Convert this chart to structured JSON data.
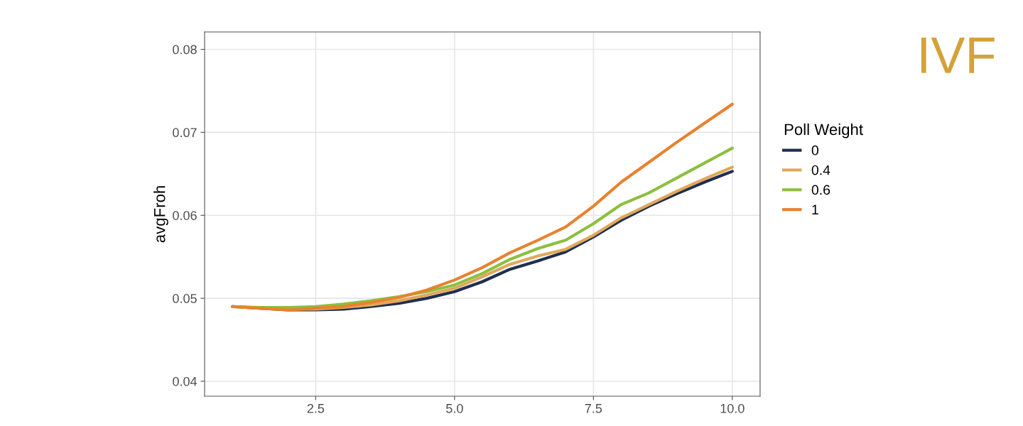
{
  "chart_data": {
    "type": "line",
    "ylabel": "avgFroh",
    "legend_title": "Poll Weight",
    "legend": "right",
    "grid": true,
    "line_style": "solid",
    "marker": "none",
    "x": [
      1,
      1.5,
      2,
      2.5,
      3,
      3.5,
      4,
      4.5,
      5,
      5.5,
      6,
      6.5,
      7,
      7.5,
      8,
      8.5,
      9,
      9.5,
      10
    ],
    "xlim": [
      0.5,
      10.5
    ],
    "xticks": [
      2.5,
      {
        "value": 5,
        "label": "5.0"
      },
      7.5,
      {
        "value": 10,
        "label": "10.0"
      }
    ],
    "ylim": [
      0.0382,
      0.0821
    ],
    "yticks": [
      0.04,
      0.05,
      0.06,
      0.07,
      0.08
    ],
    "series": [
      {
        "name": "0",
        "color": "#1f2f4f",
        "values": [
          0.049,
          0.0488,
          0.0486,
          0.0486,
          0.0487,
          0.049,
          0.0494,
          0.05,
          0.0508,
          0.052,
          0.0535,
          0.0545,
          0.0556,
          0.0574,
          0.0594,
          0.0611,
          0.0626,
          0.064,
          0.0653
        ]
      },
      {
        "name": "0.4",
        "color": "#e0a85a",
        "values": [
          0.049,
          0.0488,
          0.0487,
          0.0487,
          0.0489,
          0.0492,
          0.0497,
          0.0504,
          0.0512,
          0.0526,
          0.0541,
          0.0551,
          0.0559,
          0.0576,
          0.0597,
          0.0613,
          0.0629,
          0.0644,
          0.0658
        ]
      },
      {
        "name": "0.6",
        "color": "#8cbf3f",
        "values": [
          0.049,
          0.0489,
          0.0489,
          0.049,
          0.0493,
          0.0497,
          0.0502,
          0.0508,
          0.0516,
          0.053,
          0.0547,
          0.056,
          0.057,
          0.059,
          0.0613,
          0.0627,
          0.0645,
          0.0663,
          0.0681
        ]
      },
      {
        "name": "1",
        "color": "#e8822e",
        "values": [
          0.049,
          0.0488,
          0.0486,
          0.0488,
          0.049,
          0.0495,
          0.0501,
          0.051,
          0.0522,
          0.0537,
          0.0555,
          0.057,
          0.0586,
          0.0611,
          0.064,
          0.0664,
          0.0688,
          0.0711,
          0.0734
        ]
      }
    ],
    "annotations": [
      "IVF"
    ]
  }
}
